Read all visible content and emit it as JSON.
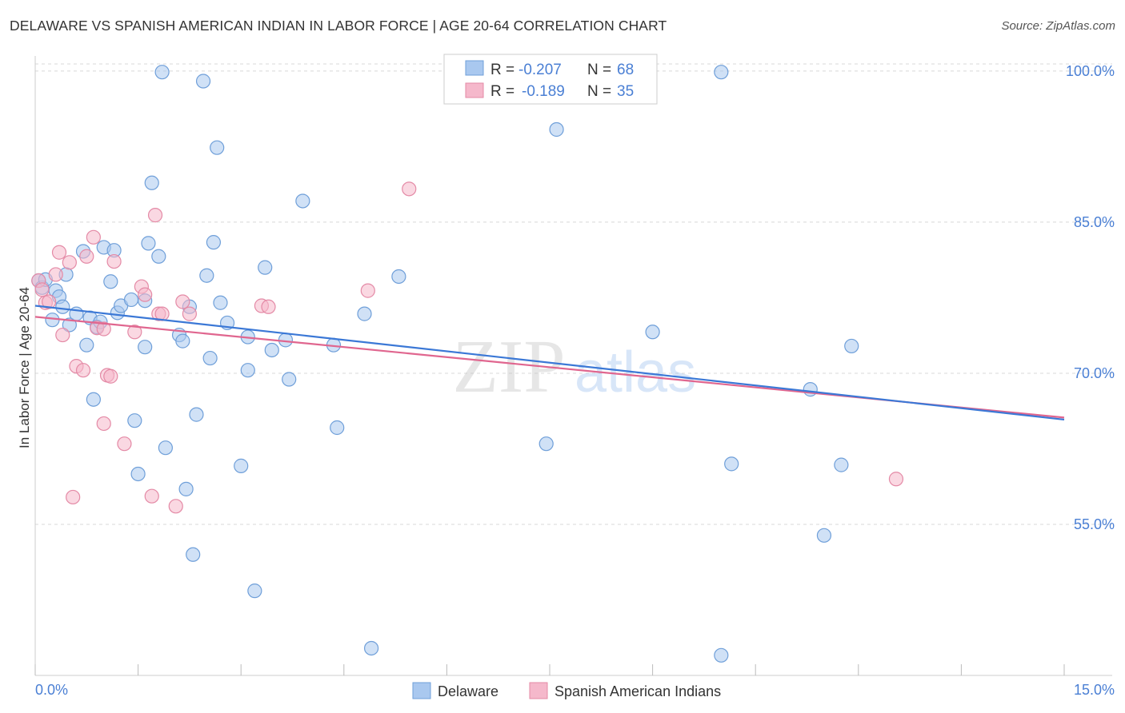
{
  "header": {
    "title": "DELAWARE VS SPANISH AMERICAN INDIAN IN LABOR FORCE | AGE 20-64 CORRELATION CHART",
    "source": "Source: ZipAtlas.com"
  },
  "watermark": {
    "part1": "ZIP",
    "part2": "atlas"
  },
  "chart_data": {
    "type": "scatter",
    "title": "DELAWARE VS SPANISH AMERICAN INDIAN IN LABOR FORCE | AGE 20-64 CORRELATION CHART",
    "ylabel": "In Labor Force | Age 20-64",
    "xlabel": "",
    "xlim": [
      0.0,
      15.0
    ],
    "ylim": [
      40.0,
      101.5
    ],
    "x_tick_labels": [
      "0.0%",
      "15.0%"
    ],
    "y_ticks": [
      55.0,
      70.0,
      85.0,
      100.0
    ],
    "y_tick_labels": [
      "55.0%",
      "70.0%",
      "85.0%",
      "100.0%"
    ],
    "grid": "horizontal dashed",
    "legend_position": "bottom-center",
    "colors": {
      "delaware_fill": "#a9c8ef",
      "delaware_stroke": "#6f9fd9",
      "delaware_line": "#3b78d6",
      "spanish_fill": "#f5b8cb",
      "spanish_stroke": "#e48aa6",
      "spanish_line": "#e0668f",
      "tick_text": "#4a7fd4",
      "grid": "#d8d8d8"
    },
    "stats_box": {
      "rows": [
        {
          "r_label": "R =",
          "r_value": "-0.207",
          "n_label": "N =",
          "n_value": "68"
        },
        {
          "r_label": "R =",
          "r_value": "-0.189",
          "n_label": "N =",
          "n_value": "35"
        }
      ]
    },
    "series": [
      {
        "name": "Delaware",
        "trend": {
          "x": [
            0.0,
            15.0
          ],
          "y": [
            76.7,
            65.4
          ]
        },
        "points": [
          [
            0.05,
            79.2
          ],
          [
            0.1,
            78.5
          ],
          [
            0.15,
            79.3
          ],
          [
            0.3,
            78.2
          ],
          [
            0.35,
            77.6
          ],
          [
            0.25,
            75.3
          ],
          [
            0.4,
            76.6
          ],
          [
            0.45,
            79.8
          ],
          [
            0.5,
            74.8
          ],
          [
            0.6,
            75.9
          ],
          [
            0.7,
            82.1
          ],
          [
            0.75,
            72.8
          ],
          [
            0.8,
            75.5
          ],
          [
            0.85,
            67.4
          ],
          [
            0.9,
            74.6
          ],
          [
            0.95,
            75.1
          ],
          [
            1.0,
            82.5
          ],
          [
            1.1,
            79.1
          ],
          [
            1.15,
            82.2
          ],
          [
            1.2,
            76.0
          ],
          [
            1.25,
            76.7
          ],
          [
            1.4,
            77.3
          ],
          [
            1.45,
            65.3
          ],
          [
            1.5,
            60.0
          ],
          [
            1.6,
            77.2
          ],
          [
            1.6,
            72.6
          ],
          [
            1.65,
            82.9
          ],
          [
            1.7,
            88.9
          ],
          [
            1.8,
            81.6
          ],
          [
            1.85,
            99.9
          ],
          [
            1.9,
            62.6
          ],
          [
            2.1,
            73.8
          ],
          [
            2.15,
            73.2
          ],
          [
            2.2,
            58.5
          ],
          [
            2.25,
            76.6
          ],
          [
            2.3,
            52.0
          ],
          [
            2.35,
            65.9
          ],
          [
            2.45,
            99.0
          ],
          [
            2.5,
            79.7
          ],
          [
            2.55,
            71.5
          ],
          [
            2.6,
            83.0
          ],
          [
            2.65,
            92.4
          ],
          [
            2.7,
            77.0
          ],
          [
            2.8,
            75.0
          ],
          [
            3.0,
            60.8
          ],
          [
            3.1,
            70.3
          ],
          [
            3.1,
            73.6
          ],
          [
            3.2,
            48.4
          ],
          [
            3.35,
            80.5
          ],
          [
            3.45,
            72.3
          ],
          [
            3.65,
            73.3
          ],
          [
            3.7,
            69.4
          ],
          [
            3.9,
            87.1
          ],
          [
            4.35,
            72.8
          ],
          [
            4.4,
            64.6
          ],
          [
            4.8,
            75.9
          ],
          [
            4.9,
            42.7
          ],
          [
            5.3,
            79.6
          ],
          [
            7.45,
            63.0
          ],
          [
            7.6,
            94.2
          ],
          [
            9.0,
            74.1
          ],
          [
            10.0,
            99.9
          ],
          [
            10.15,
            61.0
          ],
          [
            10.0,
            42.0
          ],
          [
            11.3,
            68.4
          ],
          [
            11.75,
            60.9
          ],
          [
            11.9,
            72.7
          ],
          [
            11.5,
            53.9
          ]
        ]
      },
      {
        "name": "Spanish American Indians",
        "trend": {
          "x": [
            0.0,
            15.0
          ],
          "y": [
            75.6,
            65.6
          ]
        },
        "points": [
          [
            0.05,
            79.2
          ],
          [
            0.1,
            78.3
          ],
          [
            0.15,
            77.0
          ],
          [
            0.3,
            79.8
          ],
          [
            0.35,
            82.0
          ],
          [
            0.4,
            73.8
          ],
          [
            0.5,
            81.0
          ],
          [
            0.55,
            57.7
          ],
          [
            0.6,
            70.7
          ],
          [
            0.7,
            70.3
          ],
          [
            0.75,
            81.6
          ],
          [
            0.85,
            83.5
          ],
          [
            0.9,
            74.5
          ],
          [
            1.0,
            74.4
          ],
          [
            1.0,
            65.0
          ],
          [
            1.05,
            69.8
          ],
          [
            1.1,
            69.7
          ],
          [
            1.15,
            81.1
          ],
          [
            1.3,
            63.0
          ],
          [
            1.45,
            74.1
          ],
          [
            1.55,
            78.6
          ],
          [
            1.6,
            77.8
          ],
          [
            1.7,
            57.8
          ],
          [
            1.75,
            85.7
          ],
          [
            1.8,
            75.9
          ],
          [
            1.85,
            75.9
          ],
          [
            2.05,
            56.8
          ],
          [
            2.15,
            77.1
          ],
          [
            2.25,
            75.9
          ],
          [
            3.3,
            76.7
          ],
          [
            3.4,
            76.6
          ],
          [
            4.85,
            78.2
          ],
          [
            5.45,
            88.3
          ],
          [
            12.55,
            59.5
          ],
          [
            0.2,
            77.1
          ]
        ]
      }
    ]
  },
  "legend": {
    "items": [
      {
        "label": "Delaware"
      },
      {
        "label": "Spanish American Indians"
      }
    ]
  }
}
